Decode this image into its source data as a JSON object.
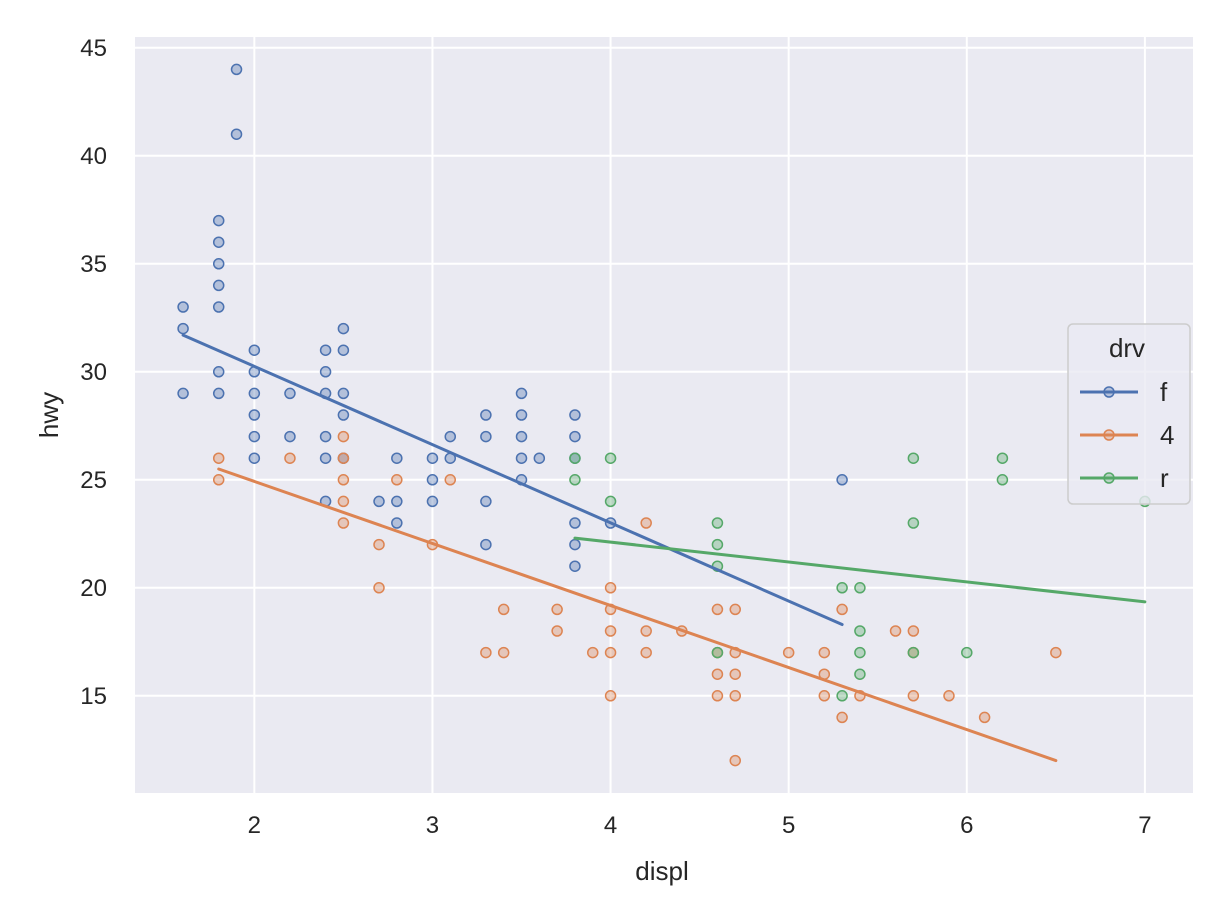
{
  "chart_data": {
    "type": "scatter",
    "title": "",
    "xlabel": "displ",
    "ylabel": "hwy",
    "xlim": [
      1.33,
      7.27
    ],
    "ylim": [
      10.5,
      45.5
    ],
    "xticks": [
      2,
      3,
      4,
      5,
      6,
      7
    ],
    "yticks": [
      15,
      20,
      25,
      30,
      35,
      40,
      45
    ],
    "grid": true,
    "background": "#eaeaf2",
    "legend": {
      "title": "drv",
      "placement": "right"
    },
    "series": [
      {
        "name": "f",
        "color": "#4c72b0",
        "trend": [
          [
            1.6,
            31.7
          ],
          [
            5.3,
            18.3
          ]
        ],
        "points": [
          [
            1.6,
            33
          ],
          [
            1.6,
            32
          ],
          [
            1.6,
            29
          ],
          [
            1.8,
            37
          ],
          [
            1.8,
            36
          ],
          [
            1.8,
            35
          ],
          [
            1.8,
            34
          ],
          [
            1.8,
            33
          ],
          [
            1.8,
            30
          ],
          [
            1.8,
            29
          ],
          [
            1.9,
            44
          ],
          [
            1.9,
            41
          ],
          [
            2.0,
            31
          ],
          [
            2.0,
            30
          ],
          [
            2.0,
            29
          ],
          [
            2.0,
            28
          ],
          [
            2.0,
            27
          ],
          [
            2.0,
            26
          ],
          [
            2.2,
            29
          ],
          [
            2.2,
            27
          ],
          [
            2.4,
            31
          ],
          [
            2.4,
            30
          ],
          [
            2.4,
            29
          ],
          [
            2.4,
            27
          ],
          [
            2.4,
            26
          ],
          [
            2.4,
            24
          ],
          [
            2.5,
            32
          ],
          [
            2.5,
            31
          ],
          [
            2.5,
            29
          ],
          [
            2.5,
            28
          ],
          [
            2.5,
            26
          ],
          [
            2.7,
            24
          ],
          [
            2.8,
            26
          ],
          [
            2.8,
            24
          ],
          [
            2.8,
            23
          ],
          [
            3.0,
            26
          ],
          [
            3.0,
            25
          ],
          [
            3.0,
            24
          ],
          [
            3.1,
            27
          ],
          [
            3.1,
            26
          ],
          [
            3.3,
            28
          ],
          [
            3.3,
            27
          ],
          [
            3.3,
            24
          ],
          [
            3.3,
            22
          ],
          [
            3.5,
            29
          ],
          [
            3.5,
            28
          ],
          [
            3.5,
            27
          ],
          [
            3.5,
            26
          ],
          [
            3.5,
            25
          ],
          [
            3.6,
            26
          ],
          [
            3.8,
            28
          ],
          [
            3.8,
            27
          ],
          [
            3.8,
            26
          ],
          [
            3.8,
            23
          ],
          [
            3.8,
            22
          ],
          [
            3.8,
            21
          ],
          [
            4.0,
            23
          ],
          [
            5.3,
            25
          ]
        ]
      },
      {
        "name": "4",
        "color": "#dd8452",
        "trend": [
          [
            1.8,
            25.5
          ],
          [
            6.5,
            12.0
          ]
        ],
        "points": [
          [
            1.8,
            26
          ],
          [
            1.8,
            25
          ],
          [
            2.2,
            26
          ],
          [
            2.5,
            27
          ],
          [
            2.5,
            26
          ],
          [
            2.5,
            25
          ],
          [
            2.5,
            24
          ],
          [
            2.5,
            23
          ],
          [
            2.7,
            22
          ],
          [
            2.7,
            20
          ],
          [
            2.8,
            25
          ],
          [
            3.0,
            22
          ],
          [
            3.1,
            25
          ],
          [
            3.3,
            17
          ],
          [
            3.4,
            19
          ],
          [
            3.4,
            17
          ],
          [
            3.7,
            19
          ],
          [
            3.7,
            18
          ],
          [
            3.9,
            17
          ],
          [
            4.0,
            20
          ],
          [
            4.0,
            19
          ],
          [
            4.0,
            18
          ],
          [
            4.0,
            17
          ],
          [
            4.0,
            15
          ],
          [
            4.2,
            23
          ],
          [
            4.2,
            18
          ],
          [
            4.2,
            17
          ],
          [
            4.4,
            18
          ],
          [
            4.6,
            19
          ],
          [
            4.6,
            17
          ],
          [
            4.6,
            16
          ],
          [
            4.6,
            15
          ],
          [
            4.7,
            19
          ],
          [
            4.7,
            17
          ],
          [
            4.7,
            16
          ],
          [
            4.7,
            15
          ],
          [
            4.7,
            12
          ],
          [
            5.0,
            17
          ],
          [
            5.2,
            17
          ],
          [
            5.2,
            16
          ],
          [
            5.2,
            15
          ],
          [
            5.3,
            19
          ],
          [
            5.3,
            14
          ],
          [
            5.4,
            15
          ],
          [
            5.6,
            18
          ],
          [
            5.7,
            18
          ],
          [
            5.7,
            17
          ],
          [
            5.7,
            15
          ],
          [
            5.9,
            15
          ],
          [
            6.1,
            14
          ],
          [
            6.5,
            17
          ]
        ]
      },
      {
        "name": "r",
        "color": "#55a868",
        "trend": [
          [
            3.8,
            22.3
          ],
          [
            7.0,
            19.35
          ]
        ],
        "points": [
          [
            3.8,
            26
          ],
          [
            3.8,
            25
          ],
          [
            4.0,
            26
          ],
          [
            4.0,
            24
          ],
          [
            4.6,
            23
          ],
          [
            4.6,
            22
          ],
          [
            4.6,
            21
          ],
          [
            4.6,
            17
          ],
          [
            5.3,
            20
          ],
          [
            5.3,
            15
          ],
          [
            5.4,
            20
          ],
          [
            5.4,
            18
          ],
          [
            5.4,
            17
          ],
          [
            5.4,
            16
          ],
          [
            5.7,
            26
          ],
          [
            5.7,
            23
          ],
          [
            5.7,
            17
          ],
          [
            6.0,
            17
          ],
          [
            6.2,
            26
          ],
          [
            6.2,
            25
          ],
          [
            7.0,
            24
          ]
        ]
      }
    ]
  }
}
